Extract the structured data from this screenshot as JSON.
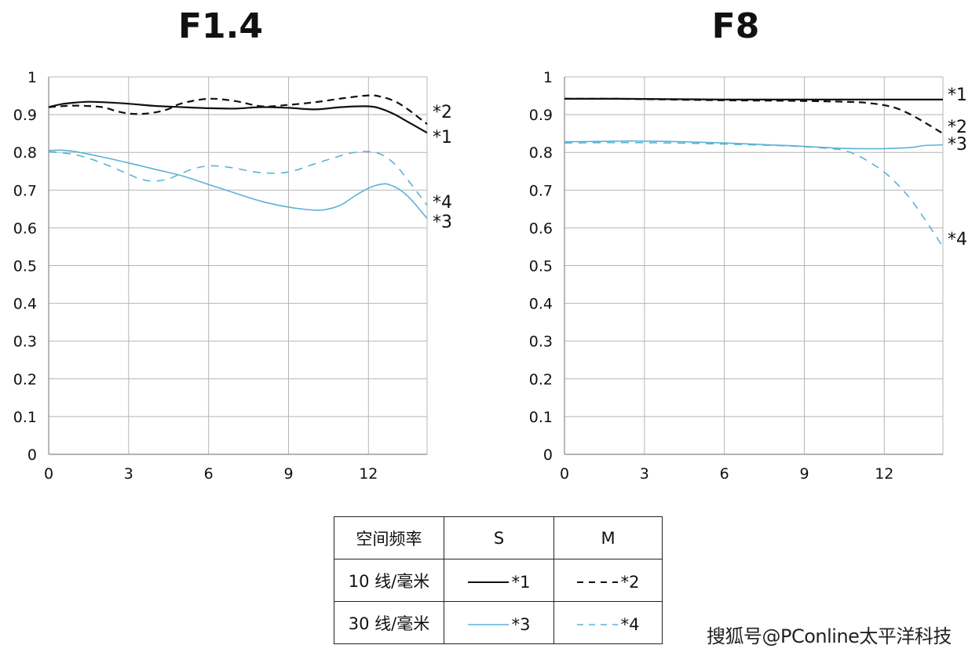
{
  "charts": {
    "left_title": "F1.4",
    "right_title": "F8"
  },
  "chart_data": [
    {
      "type": "line",
      "title": "F1.4",
      "xlim": [
        0,
        14.2
      ],
      "ylim": [
        0,
        1
      ],
      "x_ticks": [
        "0",
        "3",
        "6",
        "9",
        "12"
      ],
      "y_ticks": [
        "0",
        "0.1",
        "0.2",
        "0.3",
        "0.4",
        "0.5",
        "0.6",
        "0.7",
        "0.8",
        "0.9",
        "1"
      ],
      "grid": true,
      "series": [
        {
          "name": "*1",
          "color": "#111111",
          "dash": "solid",
          "width": 2.2,
          "x": [
            0,
            0.5,
            1,
            1.5,
            2,
            3,
            4,
            5,
            6,
            7,
            8,
            9,
            10,
            11,
            12,
            12.5,
            13,
            13.5,
            14.2
          ],
          "y": [
            0.92,
            0.928,
            0.932,
            0.934,
            0.933,
            0.929,
            0.923,
            0.92,
            0.917,
            0.916,
            0.92,
            0.918,
            0.914,
            0.92,
            0.922,
            0.915,
            0.9,
            0.88,
            0.852
          ]
        },
        {
          "name": "*2",
          "color": "#111111",
          "dash": "dashed",
          "width": 2.2,
          "x": [
            0,
            1,
            2,
            2.5,
            3,
            3.5,
            4,
            4.5,
            5,
            6,
            7,
            8,
            9,
            10,
            11,
            12,
            12.5,
            13,
            13.5,
            14.2
          ],
          "y": [
            0.92,
            0.924,
            0.92,
            0.91,
            0.903,
            0.902,
            0.906,
            0.915,
            0.93,
            0.942,
            0.936,
            0.922,
            0.926,
            0.933,
            0.943,
            0.951,
            0.947,
            0.935,
            0.913,
            0.875
          ]
        },
        {
          "name": "*3",
          "color": "#5bb3d5",
          "dash": "solid",
          "width": 1.6,
          "x": [
            0,
            0.5,
            1,
            2,
            3,
            4,
            5,
            6,
            7,
            8,
            9,
            10,
            10.5,
            11,
            11.5,
            12,
            12.5,
            12.8,
            13.2,
            13.6,
            14.2
          ],
          "y": [
            0.805,
            0.806,
            0.802,
            0.788,
            0.772,
            0.755,
            0.738,
            0.715,
            0.692,
            0.67,
            0.655,
            0.647,
            0.65,
            0.662,
            0.685,
            0.705,
            0.716,
            0.714,
            0.7,
            0.675,
            0.625
          ]
        },
        {
          "name": "*4",
          "color": "#5bb3d5",
          "dash": "dashed",
          "width": 1.6,
          "x": [
            0,
            1,
            2,
            3,
            3.5,
            4,
            4.5,
            5,
            5.5,
            6,
            6.5,
            7,
            8,
            9,
            10,
            11,
            11.5,
            12,
            12.5,
            13,
            13.5,
            14.2
          ],
          "y": [
            0.802,
            0.794,
            0.772,
            0.742,
            0.728,
            0.724,
            0.73,
            0.745,
            0.758,
            0.764,
            0.763,
            0.758,
            0.746,
            0.748,
            0.77,
            0.792,
            0.8,
            0.802,
            0.794,
            0.768,
            0.725,
            0.66
          ]
        }
      ],
      "end_labels": [
        "*2",
        "*1",
        "*4",
        "*3"
      ]
    },
    {
      "type": "line",
      "title": "F8",
      "xlim": [
        0,
        14.2
      ],
      "ylim": [
        0,
        1
      ],
      "x_ticks": [
        "0",
        "3",
        "6",
        "9",
        "12"
      ],
      "y_ticks": [
        "0",
        "0.1",
        "0.2",
        "0.3",
        "0.4",
        "0.5",
        "0.6",
        "0.7",
        "0.8",
        "0.9",
        "1"
      ],
      "grid": true,
      "series": [
        {
          "name": "*1",
          "color": "#111111",
          "dash": "solid",
          "width": 2.2,
          "x": [
            0,
            2,
            4,
            6,
            8,
            10,
            12,
            13,
            14.2
          ],
          "y": [
            0.942,
            0.942,
            0.941,
            0.94,
            0.94,
            0.94,
            0.94,
            0.94,
            0.94
          ]
        },
        {
          "name": "*2",
          "color": "#111111",
          "dash": "dashed",
          "width": 2.2,
          "x": [
            0,
            2,
            4,
            6,
            8,
            10,
            11,
            11.5,
            12,
            12.5,
            13,
            13.5,
            14.2
          ],
          "y": [
            0.942,
            0.942,
            0.94,
            0.938,
            0.937,
            0.935,
            0.933,
            0.93,
            0.925,
            0.916,
            0.9,
            0.88,
            0.85
          ]
        },
        {
          "name": "*3",
          "color": "#5bb3d5",
          "dash": "solid",
          "width": 1.6,
          "x": [
            0,
            1,
            2,
            3,
            4,
            5,
            6,
            7,
            8,
            9,
            10,
            11,
            12,
            13,
            13.5,
            14.2
          ],
          "y": [
            0.828,
            0.829,
            0.83,
            0.83,
            0.829,
            0.827,
            0.825,
            0.822,
            0.819,
            0.816,
            0.812,
            0.81,
            0.81,
            0.813,
            0.818,
            0.82
          ]
        },
        {
          "name": "*4",
          "color": "#5bb3d5",
          "dash": "dashed",
          "width": 1.6,
          "x": [
            0,
            2,
            4,
            6,
            8,
            9,
            10,
            10.5,
            11,
            11.5,
            12,
            12.5,
            13,
            13.5,
            14.2
          ],
          "y": [
            0.825,
            0.826,
            0.825,
            0.822,
            0.818,
            0.815,
            0.81,
            0.805,
            0.792,
            0.772,
            0.748,
            0.715,
            0.675,
            0.625,
            0.55
          ]
        }
      ],
      "end_labels": [
        "*1",
        "*2",
        "*3",
        "*4"
      ]
    }
  ],
  "legend": {
    "header": [
      "空间频率",
      "S",
      "M"
    ],
    "rows": [
      {
        "label": "10 线/毫米",
        "s_name": "*1",
        "m_name": "*2",
        "color": "#111111"
      },
      {
        "label": "30 线/毫米",
        "s_name": "*3",
        "m_name": "*4",
        "color": "#5bb3d5"
      }
    ]
  },
  "watermark": "搜狐号@PConline太平洋科技"
}
